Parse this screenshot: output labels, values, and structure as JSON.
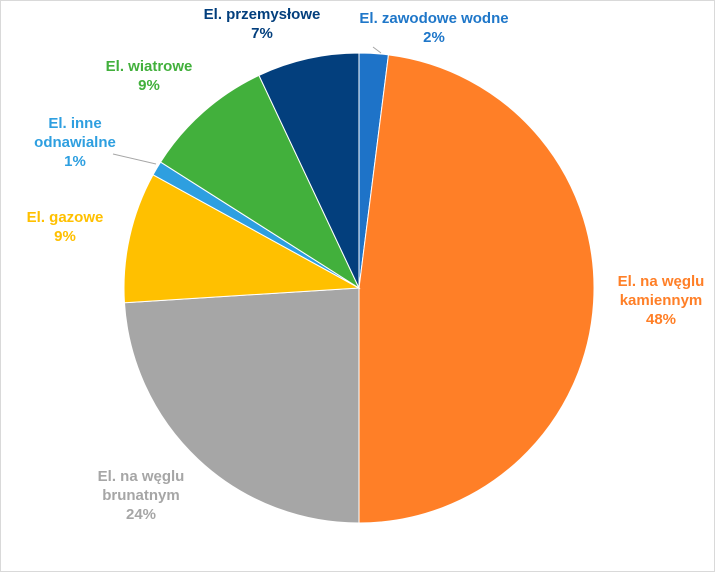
{
  "chart_data": {
    "type": "pie",
    "title": "",
    "legend": "none",
    "slices": [
      {
        "label": "El. zawodowe wodne",
        "value": 2,
        "value_label": "2%",
        "color": "#1e73c8",
        "label_color": "#1f77c9"
      },
      {
        "label": "El. na węglu kamiennym",
        "value": 48,
        "value_label": "48%",
        "color": "#ff7f27",
        "label_color": "#ff7f27"
      },
      {
        "label": "El. na węglu brunatnym",
        "value": 24,
        "value_label": "24%",
        "color": "#a6a6a6",
        "label_color": "#a6a6a6"
      },
      {
        "label": "El. gazowe",
        "value": 9,
        "value_label": "9%",
        "color": "#ffc000",
        "label_color": "#ffc000"
      },
      {
        "label": "El. inne odnawialne",
        "value": 1,
        "value_label": "1%",
        "color": "#2e9fe0",
        "label_color": "#2e9fe0"
      },
      {
        "label": "El. wiatrowe",
        "value": 9,
        "value_label": "9%",
        "color": "#42b03c",
        "label_color": "#42b03c"
      },
      {
        "label": "El. przemysłowe",
        "value": 7,
        "value_label": "7%",
        "color": "#033f7d",
        "label_color": "#033f7d"
      }
    ]
  }
}
